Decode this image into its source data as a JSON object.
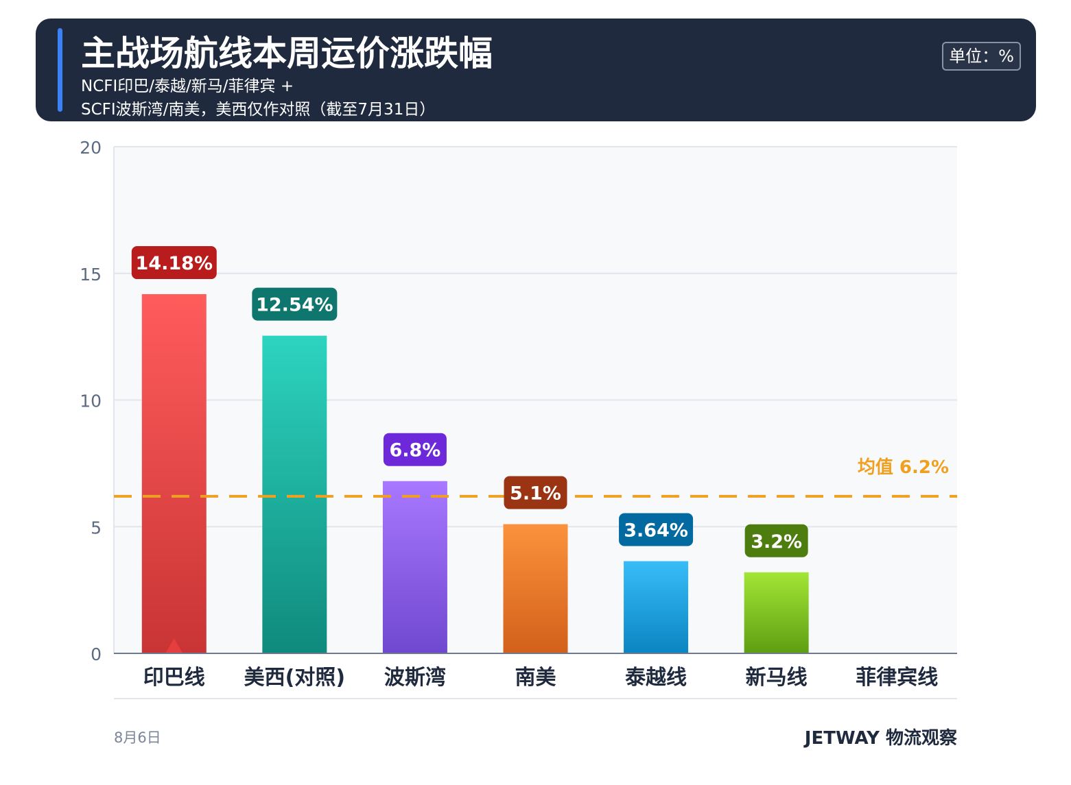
{
  "header": {
    "title": "主战场航线本周运价涨跌幅",
    "subtitle_line1": "NCFI印巴/泰越/新马/菲律宾 +",
    "subtitle_line2": "SCFI波斯湾/南美，美西仅作对照（截至7月31日）",
    "unit": "单位：%",
    "accent_color": "#3b82f6"
  },
  "footer": {
    "date": "8月6日",
    "brand": "JETWAY 物流观察"
  },
  "chart_data": {
    "type": "bar",
    "categories": [
      "印巴线",
      "美西(对照)",
      "波斯湾",
      "南美",
      "泰越线",
      "新马线",
      "菲律宾线"
    ],
    "values": [
      14.18,
      12.54,
      6.8,
      5.1,
      3.64,
      3.2,
      null
    ],
    "data_labels": [
      "14.18%",
      "12.54%",
      "6.8%",
      "5.1%",
      "3.64%",
      "3.2%",
      ""
    ],
    "ylim": [
      0,
      20
    ],
    "yticks": [
      0,
      5,
      10,
      15,
      20
    ],
    "grid": true,
    "bar_colors": [
      {
        "top": "#ff5c5c",
        "bottom": "#c93434",
        "label_bg": "#b91c1c"
      },
      {
        "top": "#2dd4bf",
        "bottom": "#0f8a7c",
        "label_bg": "#0f766e"
      },
      {
        "top": "#a878ff",
        "bottom": "#7048d0",
        "label_bg": "#6d28d9"
      },
      {
        "top": "#fb923c",
        "bottom": "#d2601a",
        "label_bg": "#9a3412"
      },
      {
        "top": "#38bdf8",
        "bottom": "#0a85c2",
        "label_bg": "#0369a1"
      },
      {
        "top": "#a3e635",
        "bottom": "#5e9e12",
        "label_bg": "#4d7c0f"
      },
      {
        "top": "#cccccc",
        "bottom": "#999999",
        "label_bg": "#666666"
      }
    ],
    "mean": {
      "value": 6.2,
      "label": "均值 6.2%",
      "color": "#f0a020"
    },
    "highlight_marker": {
      "category_index": 0,
      "color": "#e53e3e"
    }
  }
}
